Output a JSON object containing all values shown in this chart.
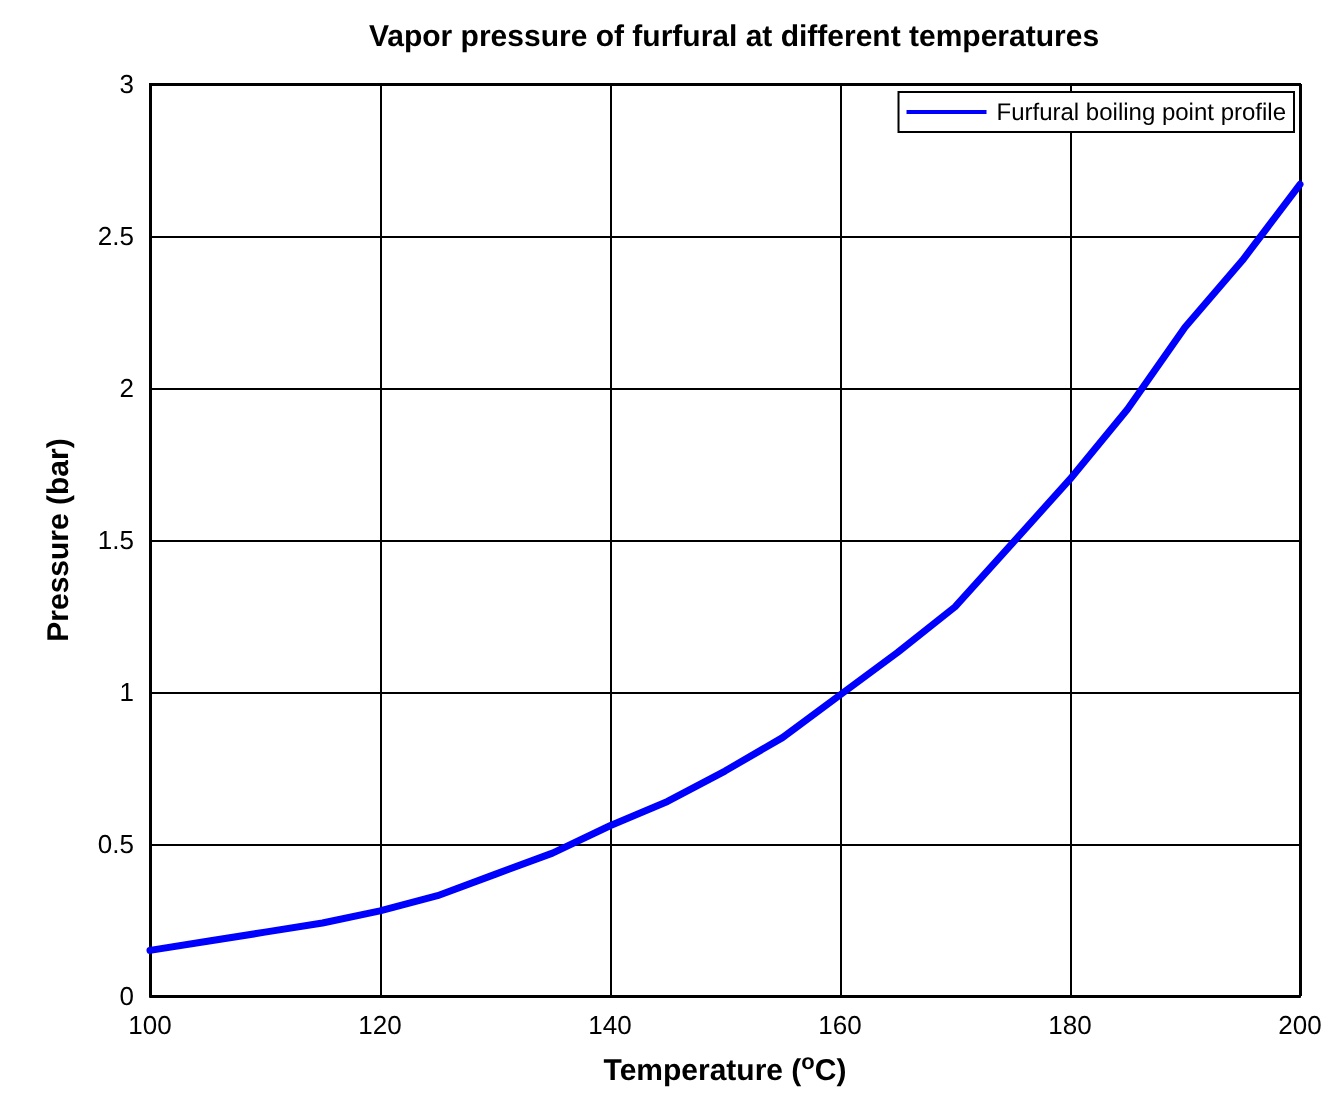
{
  "chart_data": {
    "type": "line",
    "title": "Vapor pressure of furfural at different temperatures",
    "xlabel": "Temperature ($^{o}$C)",
    "ylabel": "Pressure (bar)",
    "x": [
      100,
      105,
      110,
      115,
      120,
      125,
      130,
      135,
      140,
      145,
      150,
      155,
      160,
      165,
      170,
      175,
      180,
      185,
      190,
      195,
      200
    ],
    "series": [
      {
        "name": "Furfural boiling point profile",
        "color": "#0000ff",
        "values": [
          0.15,
          0.18,
          0.21,
          0.24,
          0.28,
          0.33,
          0.4,
          0.47,
          0.56,
          0.64,
          0.74,
          0.85,
          0.99,
          1.13,
          1.28,
          1.49,
          1.7,
          1.93,
          2.2,
          2.42,
          2.67
        ]
      }
    ],
    "xlim": [
      100,
      200
    ],
    "xticks": [
      100,
      120,
      140,
      160,
      180,
      200
    ],
    "ylim": [
      0,
      3
    ],
    "yticks": [
      0,
      0.5,
      1,
      1.5,
      2,
      2.5,
      3
    ],
    "grid": true,
    "legend": "top right",
    "marker": "none",
    "line_style": "solid"
  }
}
